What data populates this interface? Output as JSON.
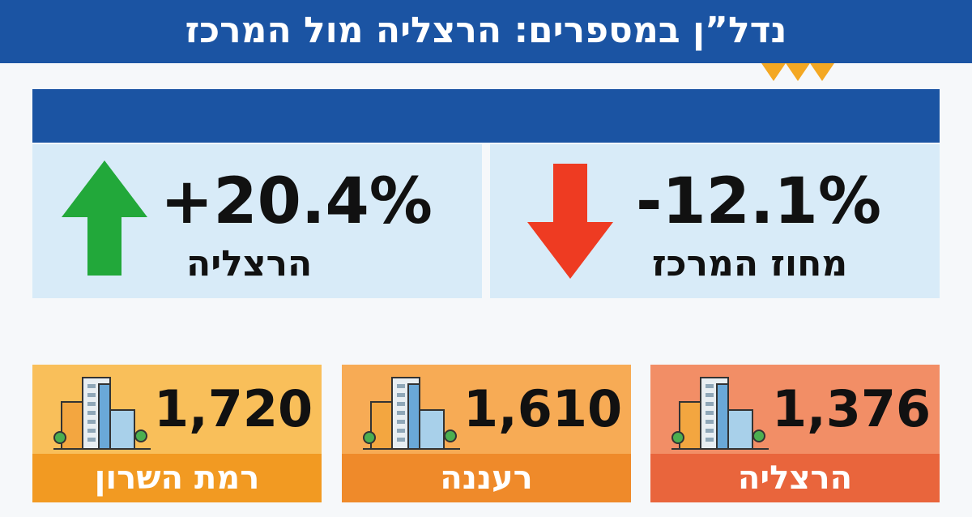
{
  "header": {
    "title": "נדל”ן במספרים: הרצליה מול המרכז"
  },
  "changes": [
    {
      "value": "+20.4%",
      "label": "הרצליה"
    },
    {
      "value": "-12.1%",
      "label": "מחוז המרכז"
    }
  ],
  "cards": [
    {
      "value": "1,720",
      "label": "רמת השרון"
    },
    {
      "value": "1,610",
      "label": "רעננה"
    },
    {
      "value": "1,376",
      "label": "הרצליה"
    }
  ]
}
